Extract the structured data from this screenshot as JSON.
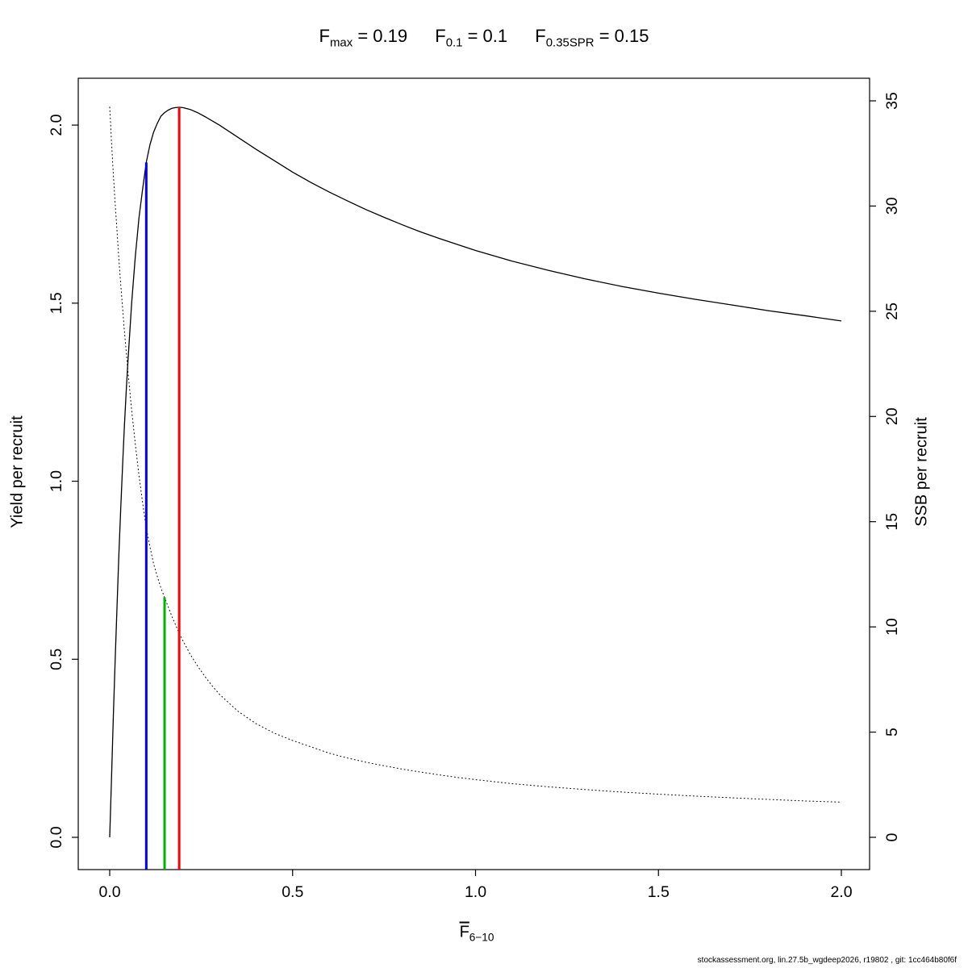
{
  "title": {
    "parts": [
      {
        "base": "F",
        "sub": "max",
        "eq": " = 0.19"
      },
      {
        "base": "F",
        "sub": "0.1",
        "eq": " = 0.1"
      },
      {
        "base": "F",
        "sub": "0.35SPR",
        "eq": " = 0.15"
      }
    ]
  },
  "axes": {
    "x": {
      "label_base": "F",
      "label_sub": "6−10",
      "tick_values": [
        0,
        0.5,
        1,
        1.5,
        2
      ],
      "tick_labels": [
        "0.0",
        "0.5",
        "1.0",
        "1.5",
        "2.0"
      ]
    },
    "y_left": {
      "label": "Yield per recruit",
      "tick_values": [
        0,
        0.5,
        1,
        1.5,
        2
      ],
      "tick_labels": [
        "0.0",
        "0.5",
        "1.0",
        "1.5",
        "2.0"
      ]
    },
    "y_right": {
      "label": "SSB per recruit",
      "tick_values": [
        0,
        5,
        10,
        15,
        20,
        25,
        30,
        35
      ],
      "tick_labels": [
        "0",
        "5",
        "10",
        "15",
        "20",
        "25",
        "30",
        "35"
      ]
    }
  },
  "footer": "stockassessment.org, lin.27.5b_wgdeep2026, r19802 , git: 1cc464b80f6f",
  "chart_data": {
    "type": "line",
    "title": "Fmax = 0.19  F0.1 = 0.1  F0.35SPR = 0.15",
    "xlabel": "Fbar 6-10",
    "ylabel_left": "Yield per recruit",
    "ylabel_right": "SSB per recruit",
    "xlim": [
      0,
      2
    ],
    "ylim_left": [
      0,
      2.05
    ],
    "ylim_right": [
      0,
      35
    ],
    "grid": false,
    "series": [
      {
        "name": "Yield per recruit",
        "axis": "left",
        "style": "solid",
        "color": "#000000",
        "points": [
          [
            0,
            0
          ],
          [
            0.005,
            0.17
          ],
          [
            0.01,
            0.34
          ],
          [
            0.015,
            0.5
          ],
          [
            0.02,
            0.65
          ],
          [
            0.025,
            0.79
          ],
          [
            0.03,
            0.92
          ],
          [
            0.035,
            1.04
          ],
          [
            0.04,
            1.15
          ],
          [
            0.045,
            1.25
          ],
          [
            0.05,
            1.34
          ],
          [
            0.06,
            1.5
          ],
          [
            0.07,
            1.63
          ],
          [
            0.08,
            1.74
          ],
          [
            0.09,
            1.82
          ],
          [
            0.1,
            1.895
          ],
          [
            0.11,
            1.945
          ],
          [
            0.12,
            1.98
          ],
          [
            0.13,
            2.005
          ],
          [
            0.14,
            2.025
          ],
          [
            0.15,
            2.035
          ],
          [
            0.16,
            2.042
          ],
          [
            0.17,
            2.047
          ],
          [
            0.18,
            2.049
          ],
          [
            0.19,
            2.05
          ],
          [
            0.2,
            2.049
          ],
          [
            0.22,
            2.044
          ],
          [
            0.24,
            2.035
          ],
          [
            0.26,
            2.024
          ],
          [
            0.28,
            2.012
          ],
          [
            0.3,
            2.0
          ],
          [
            0.35,
            1.966
          ],
          [
            0.4,
            1.932
          ],
          [
            0.45,
            1.9
          ],
          [
            0.5,
            1.868
          ],
          [
            0.55,
            1.839
          ],
          [
            0.6,
            1.812
          ],
          [
            0.65,
            1.787
          ],
          [
            0.7,
            1.763
          ],
          [
            0.75,
            1.741
          ],
          [
            0.8,
            1.72
          ],
          [
            0.85,
            1.7
          ],
          [
            0.9,
            1.682
          ],
          [
            0.95,
            1.665
          ],
          [
            1,
            1.648
          ],
          [
            1.1,
            1.618
          ],
          [
            1.2,
            1.592
          ],
          [
            1.3,
            1.568
          ],
          [
            1.4,
            1.547
          ],
          [
            1.5,
            1.528
          ],
          [
            1.6,
            1.511
          ],
          [
            1.7,
            1.495
          ],
          [
            1.8,
            1.479
          ],
          [
            1.9,
            1.465
          ],
          [
            2,
            1.45
          ]
        ]
      },
      {
        "name": "SSB per recruit",
        "axis": "right",
        "style": "dotted",
        "color": "#000000",
        "points": [
          [
            0,
            34.7
          ],
          [
            0.005,
            33.0
          ],
          [
            0.01,
            31.5
          ],
          [
            0.015,
            30.1
          ],
          [
            0.02,
            28.8
          ],
          [
            0.025,
            27.5
          ],
          [
            0.03,
            26.3
          ],
          [
            0.035,
            25.2
          ],
          [
            0.04,
            24.1
          ],
          [
            0.045,
            23.1
          ],
          [
            0.05,
            22.1
          ],
          [
            0.06,
            20.3
          ],
          [
            0.07,
            18.7
          ],
          [
            0.08,
            17.2
          ],
          [
            0.09,
            15.9
          ],
          [
            0.1,
            14.7
          ],
          [
            0.11,
            13.8
          ],
          [
            0.12,
            13.0
          ],
          [
            0.13,
            12.4
          ],
          [
            0.14,
            11.85
          ],
          [
            0.15,
            11.4
          ],
          [
            0.16,
            10.95
          ],
          [
            0.17,
            10.5
          ],
          [
            0.18,
            10.1
          ],
          [
            0.19,
            9.7
          ],
          [
            0.2,
            9.35
          ],
          [
            0.22,
            8.7
          ],
          [
            0.24,
            8.15
          ],
          [
            0.26,
            7.65
          ],
          [
            0.28,
            7.2
          ],
          [
            0.3,
            6.8
          ],
          [
            0.35,
            6.0
          ],
          [
            0.4,
            5.4
          ],
          [
            0.45,
            4.95
          ],
          [
            0.5,
            4.6
          ],
          [
            0.55,
            4.3
          ],
          [
            0.6,
            4.0
          ],
          [
            0.65,
            3.77
          ],
          [
            0.7,
            3.57
          ],
          [
            0.75,
            3.4
          ],
          [
            0.8,
            3.24
          ],
          [
            0.85,
            3.1
          ],
          [
            0.9,
            2.97
          ],
          [
            0.95,
            2.85
          ],
          [
            1,
            2.74
          ],
          [
            1.1,
            2.55
          ],
          [
            1.2,
            2.4
          ],
          [
            1.3,
            2.27
          ],
          [
            1.4,
            2.15
          ],
          [
            1.5,
            2.05
          ],
          [
            1.6,
            1.96
          ],
          [
            1.7,
            1.88
          ],
          [
            1.8,
            1.8
          ],
          [
            1.9,
            1.73
          ],
          [
            2,
            1.67
          ]
        ]
      }
    ],
    "reference_lines": [
      {
        "name": "F0.1",
        "slug": "f01",
        "x": 0.1,
        "top": 1.895,
        "top_axis": "left",
        "color": "#0000ff"
      },
      {
        "name": "F0.35SPR",
        "slug": "f035spr",
        "x": 0.15,
        "top": 11.4,
        "top_axis": "right",
        "color": "#00b300"
      },
      {
        "name": "Fmax",
        "slug": "fmax",
        "x": 0.19,
        "top": 2.05,
        "top_axis": "left",
        "color": "#ff0000"
      }
    ]
  }
}
